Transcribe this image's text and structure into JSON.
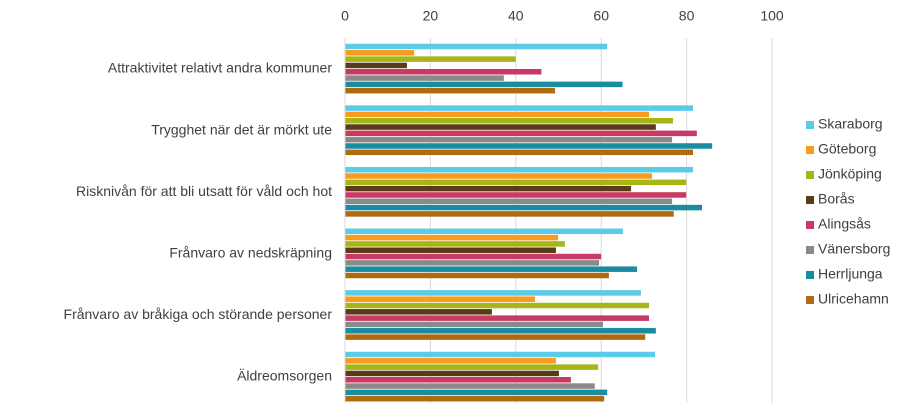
{
  "chart_data": {
    "type": "hbar",
    "categories": [
      "Attraktivitet relativt andra kommuner",
      "Trygghet när det är mörkt ute",
      "Risknivån för att bli utsatt för våld och hot",
      "Frånvaro av nedskräpning",
      "Frånvaro av bråkiga och störande personer",
      "Äldreomsorgen"
    ],
    "series": [
      {
        "name": "Skaraborg",
        "color": "#5bcbe8",
        "values": [
          61.4,
          81.5,
          81.5,
          65.1,
          69.3,
          72.6
        ]
      },
      {
        "name": "Göteborg",
        "color": "#f99b1c",
        "values": [
          16.2,
          71.2,
          71.9,
          49.9,
          44.5,
          49.4
        ]
      },
      {
        "name": "Jönköping",
        "color": "#a8b516",
        "values": [
          40,
          76.8,
          79.9,
          51.5,
          71.2,
          59.3
        ]
      },
      {
        "name": "Borås",
        "color": "#5b3b17",
        "values": [
          14.5,
          72.8,
          67,
          49.4,
          34.4,
          50.1
        ]
      },
      {
        "name": "Alingsås",
        "color": "#c83a64",
        "values": [
          46,
          82.4,
          79.9,
          60,
          71.2,
          52.9
        ]
      },
      {
        "name": "Vänersborg",
        "color": "#8a8a8a",
        "values": [
          37.2,
          76.6,
          76.6,
          59.5,
          60.4,
          58.5
        ]
      },
      {
        "name": "Herrljunga",
        "color": "#1a8ca0",
        "values": [
          65,
          86,
          83.6,
          68.4,
          72.8,
          61.4
        ]
      },
      {
        "name": "Ulricehamn",
        "color": "#b06a10",
        "values": [
          49.2,
          81.5,
          77,
          61.8,
          70.3,
          60.7
        ]
      }
    ],
    "xlim": [
      0,
      100
    ],
    "xticks": [
      0,
      20,
      40,
      60,
      80,
      100
    ],
    "grid": true,
    "legend": "right"
  }
}
